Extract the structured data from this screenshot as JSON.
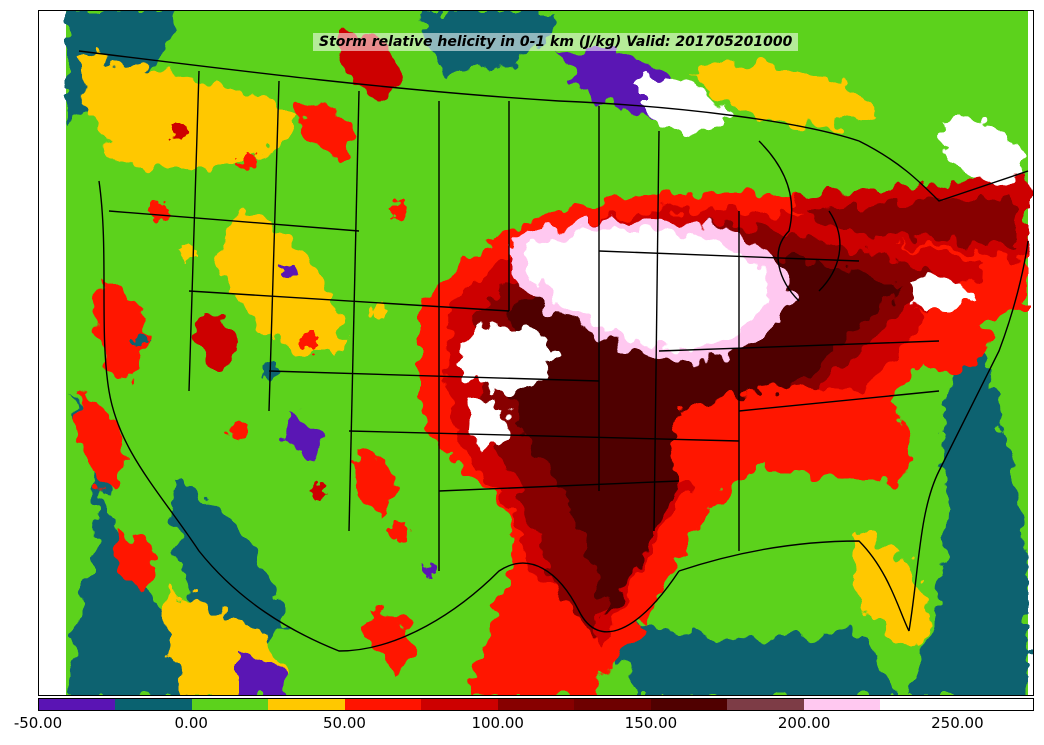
{
  "map": {
    "title": "Storm relative helicity in 0-1 km (J/kg) Valid: 201705201000",
    "variable": "Storm relative helicity in 0-1 km",
    "units": "J/kg",
    "valid_time": "201705201000"
  },
  "colorbar": {
    "orientation": "horizontal",
    "range": [
      -50,
      275
    ],
    "levels": [
      -50,
      -25,
      0,
      25,
      50,
      75,
      100,
      125,
      150,
      175,
      200,
      225,
      250,
      275
    ],
    "colors": [
      "#5a14b4",
      "#0a6270",
      "#5cd21c",
      "#ffc800",
      "#ff1400",
      "#cd0000",
      "#870000",
      "#6e0000",
      "#500000",
      "#7d3c46",
      "#ffc8f0",
      "#ffffff",
      "#ffffff"
    ],
    "tick_values": [
      -50,
      0,
      50,
      100,
      150,
      200,
      250
    ],
    "tick_labels": [
      "-50.00",
      "0.00",
      "50.00",
      "100.00",
      "150.00",
      "200.00",
      "250.00"
    ]
  }
}
